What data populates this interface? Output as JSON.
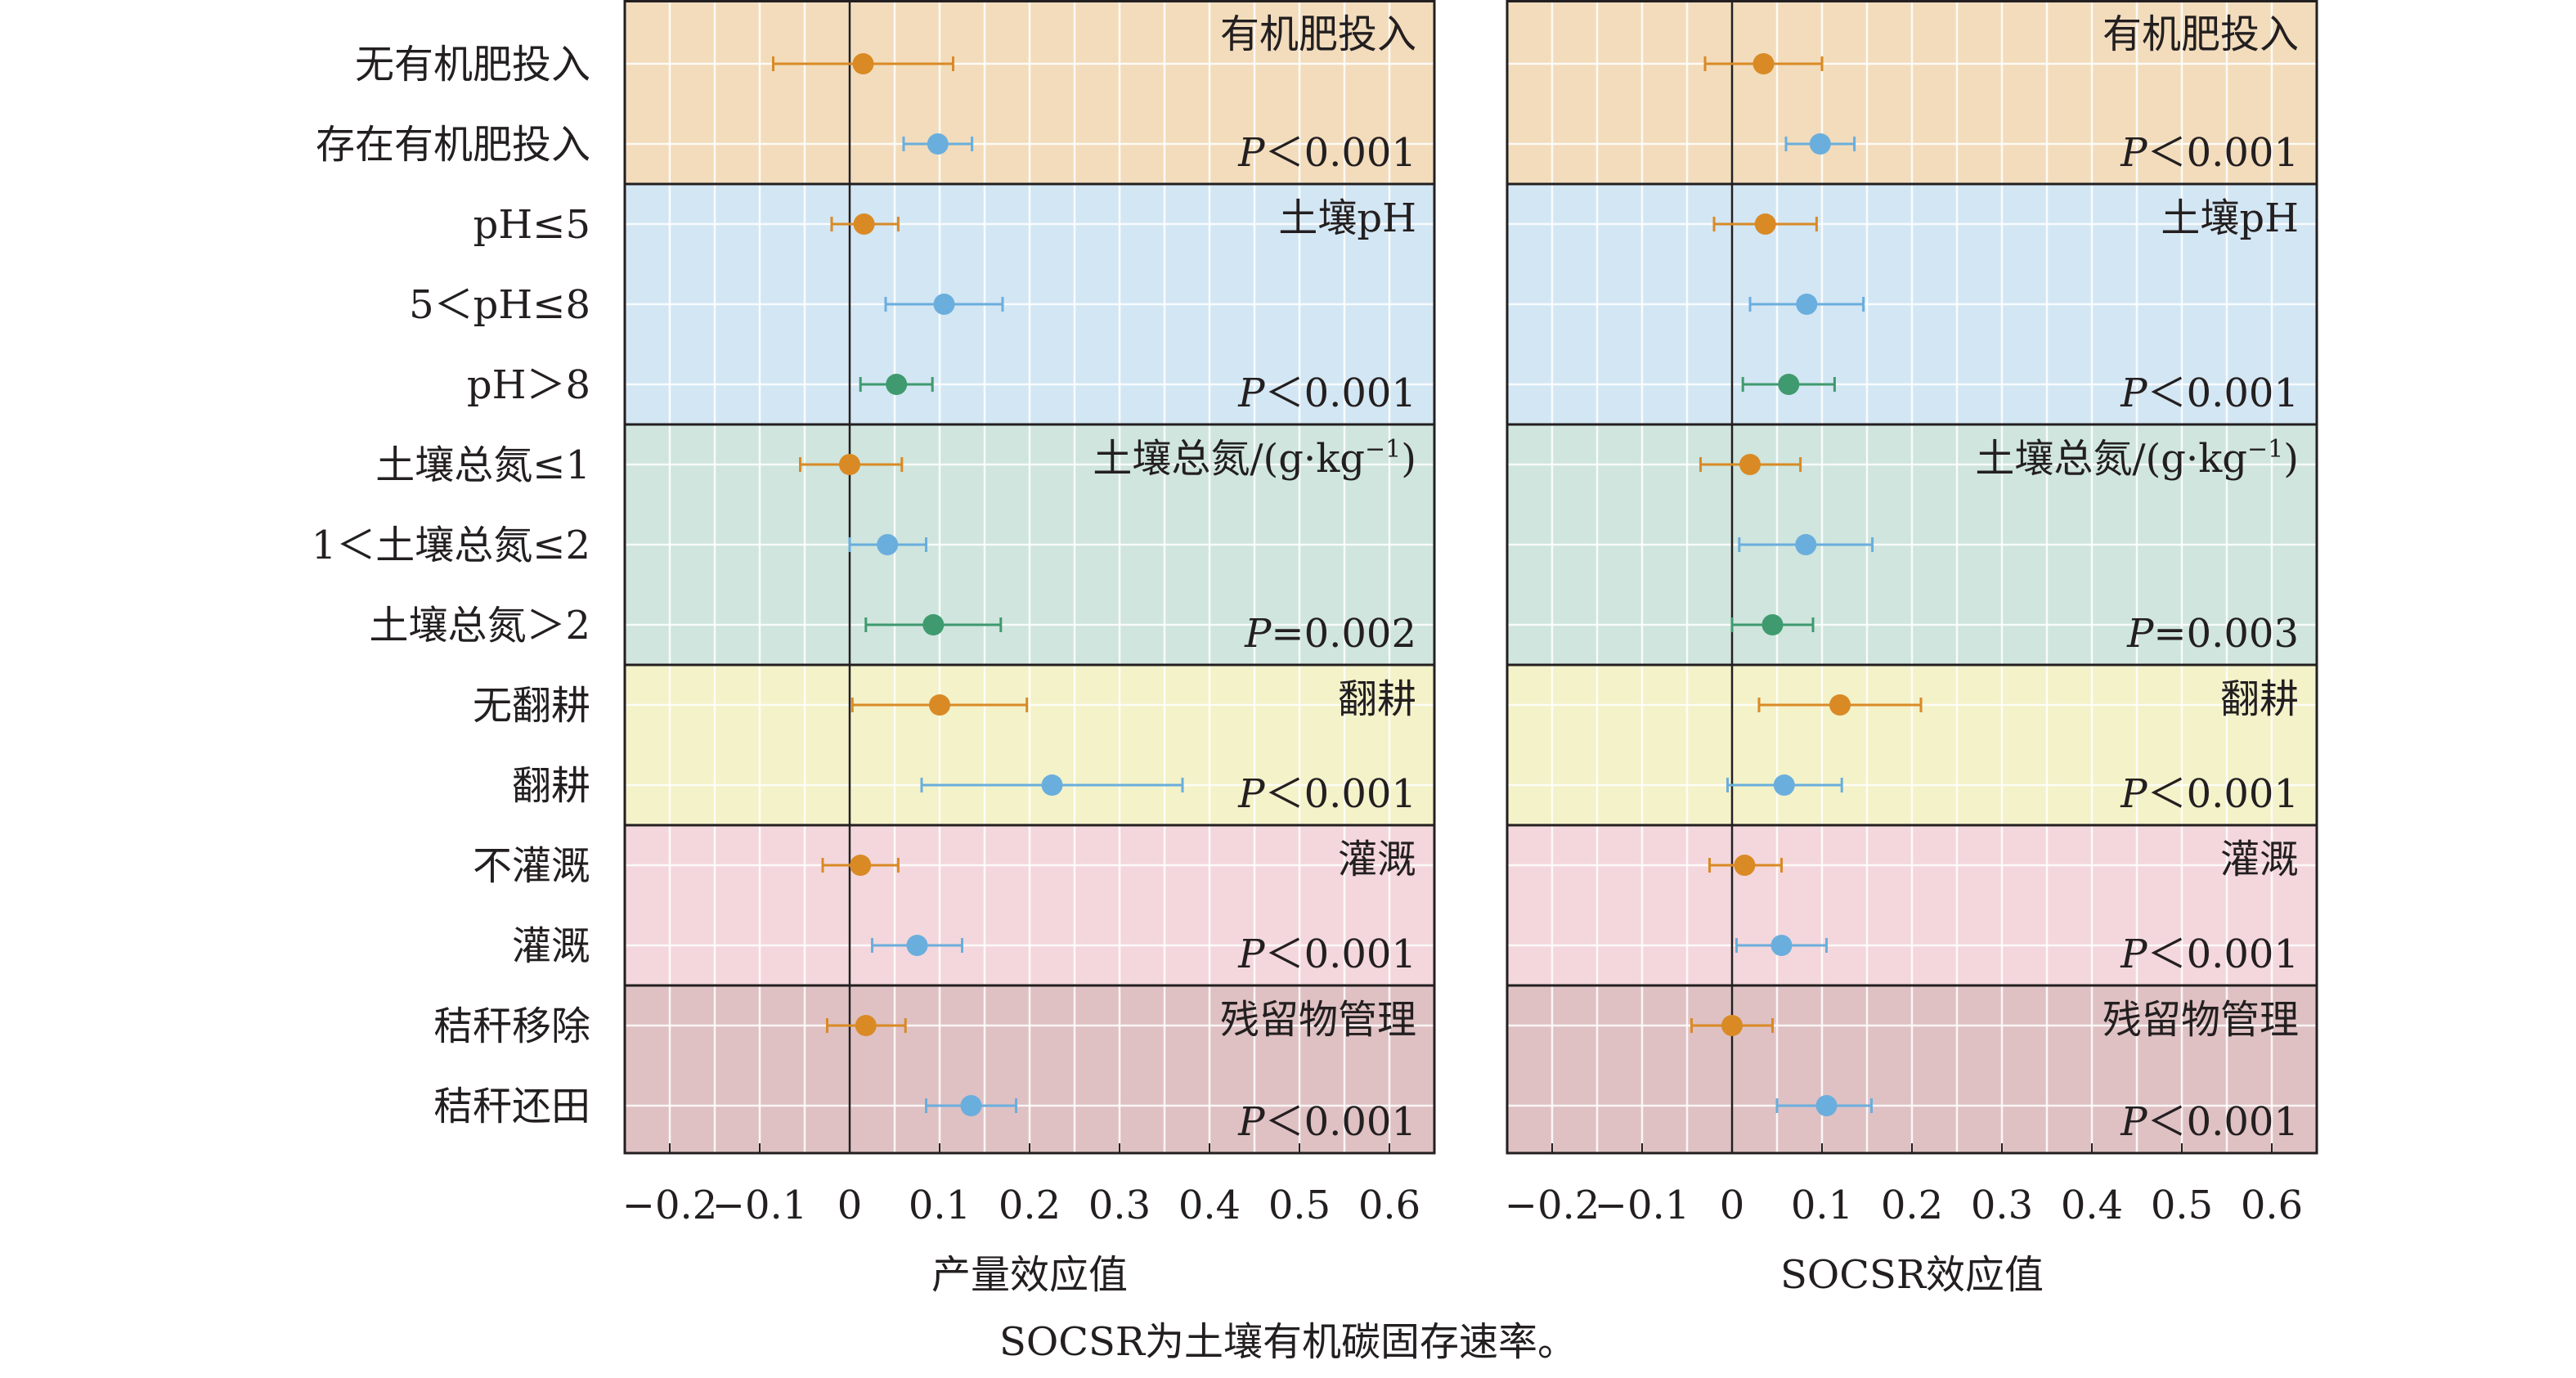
{
  "chart_data": [
    {
      "type": "forest",
      "xlabel": "产量效应值",
      "xlim": [
        -0.25,
        0.65
      ],
      "xticks": [
        -0.2,
        -0.1,
        0,
        0.1,
        0.2,
        0.3,
        0.4,
        0.5,
        0.6
      ],
      "xtick_labels": [
        "−0.2",
        "−0.1",
        "0",
        "0.1",
        "0.2",
        "0.3",
        "0.4",
        "0.5",
        "0.6"
      ],
      "groups": [
        {
          "title": "有机肥投入",
          "p_prefix": "P",
          "p_text": "＜0.001",
          "color": "#f2dcbc",
          "rows": [
            {
              "est": 0.015,
              "lo": -0.085,
              "hi": 0.115,
              "color": "#d98a25"
            },
            {
              "est": 0.098,
              "lo": 0.06,
              "hi": 0.136,
              "color": "#6aaedd"
            }
          ]
        },
        {
          "title": "土壤pH",
          "p_prefix": "P",
          "p_text": "＜0.001",
          "color": "#d3e6f3",
          "rows": [
            {
              "est": 0.016,
              "lo": -0.02,
              "hi": 0.054,
              "color": "#d98a25"
            },
            {
              "est": 0.105,
              "lo": 0.04,
              "hi": 0.17,
              "color": "#6aaedd"
            },
            {
              "est": 0.052,
              "lo": 0.012,
              "hi": 0.092,
              "color": "#3f9a6f"
            }
          ]
        },
        {
          "title": "土壤总氮/(g·kg",
          "title_sup": "−1",
          "title_tail": ")",
          "p_prefix": "P",
          "p_text": "=0.002",
          "color": "#cfe5dd",
          "rows": [
            {
              "est": 0.0,
              "lo": -0.055,
              "hi": 0.058,
              "color": "#d98a25"
            },
            {
              "est": 0.042,
              "lo": 0.0,
              "hi": 0.085,
              "color": "#6aaedd"
            },
            {
              "est": 0.093,
              "lo": 0.018,
              "hi": 0.168,
              "color": "#3f9a6f"
            }
          ]
        },
        {
          "title": "翻耕",
          "p_prefix": "P",
          "p_text": "＜0.001",
          "color": "#f3f2c9",
          "rows": [
            {
              "est": 0.1,
              "lo": 0.003,
              "hi": 0.197,
              "color": "#d98a25"
            },
            {
              "est": 0.225,
              "lo": 0.08,
              "hi": 0.37,
              "color": "#6aaedd"
            }
          ]
        },
        {
          "title": "灌溉",
          "p_prefix": "P",
          "p_text": "＜0.001",
          "color": "#f3d7dc",
          "rows": [
            {
              "est": 0.012,
              "lo": -0.03,
              "hi": 0.054,
              "color": "#d98a25"
            },
            {
              "est": 0.075,
              "lo": 0.025,
              "hi": 0.125,
              "color": "#6aaedd"
            }
          ]
        },
        {
          "title": "残留物管理",
          "p_prefix": "P",
          "p_text": "＜0.001",
          "color": "#dfc1c3",
          "rows": [
            {
              "est": 0.018,
              "lo": -0.025,
              "hi": 0.062,
              "color": "#d98a25"
            },
            {
              "est": 0.135,
              "lo": 0.085,
              "hi": 0.185,
              "color": "#6aaedd"
            }
          ]
        }
      ]
    },
    {
      "type": "forest",
      "xlabel": "SOCSR效应值",
      "xlim": [
        -0.25,
        0.65
      ],
      "xticks": [
        -0.2,
        -0.1,
        0,
        0.1,
        0.2,
        0.3,
        0.4,
        0.5,
        0.6
      ],
      "xtick_labels": [
        "−0.2",
        "−0.1",
        "0",
        "0.1",
        "0.2",
        "0.3",
        "0.4",
        "0.5",
        "0.6"
      ],
      "groups": [
        {
          "title": "有机肥投入",
          "p_prefix": "P",
          "p_text": "＜0.001",
          "color": "#f2dcbc",
          "rows": [
            {
              "est": 0.035,
              "lo": -0.03,
              "hi": 0.1,
              "color": "#d98a25"
            },
            {
              "est": 0.098,
              "lo": 0.06,
              "hi": 0.136,
              "color": "#6aaedd"
            }
          ]
        },
        {
          "title": "土壤pH",
          "p_prefix": "P",
          "p_text": "＜0.001",
          "color": "#d3e6f3",
          "rows": [
            {
              "est": 0.037,
              "lo": -0.02,
              "hi": 0.094,
              "color": "#d98a25"
            },
            {
              "est": 0.083,
              "lo": 0.02,
              "hi": 0.146,
              "color": "#6aaedd"
            },
            {
              "est": 0.063,
              "lo": 0.012,
              "hi": 0.114,
              "color": "#3f9a6f"
            }
          ]
        },
        {
          "title": "土壤总氮/(g·kg",
          "title_sup": "−1",
          "title_tail": ")",
          "p_prefix": "P",
          "p_text": "=0.003",
          "color": "#cfe5dd",
          "rows": [
            {
              "est": 0.02,
              "lo": -0.035,
              "hi": 0.076,
              "color": "#d98a25"
            },
            {
              "est": 0.082,
              "lo": 0.008,
              "hi": 0.156,
              "color": "#6aaedd"
            },
            {
              "est": 0.045,
              "lo": 0.0,
              "hi": 0.09,
              "color": "#3f9a6f"
            }
          ]
        },
        {
          "title": "翻耕",
          "p_prefix": "P",
          "p_text": "＜0.001",
          "color": "#f3f2c9",
          "rows": [
            {
              "est": 0.12,
              "lo": 0.03,
              "hi": 0.21,
              "color": "#d98a25"
            },
            {
              "est": 0.058,
              "lo": -0.005,
              "hi": 0.122,
              "color": "#6aaedd"
            }
          ]
        },
        {
          "title": "灌溉",
          "p_prefix": "P",
          "p_text": "＜0.001",
          "color": "#f3d7dc",
          "rows": [
            {
              "est": 0.014,
              "lo": -0.025,
              "hi": 0.055,
              "color": "#d98a25"
            },
            {
              "est": 0.055,
              "lo": 0.005,
              "hi": 0.105,
              "color": "#6aaedd"
            }
          ]
        },
        {
          "title": "残留物管理",
          "p_prefix": "P",
          "p_text": "＜0.001",
          "color": "#dfc1c3",
          "rows": [
            {
              "est": 0.0,
              "lo": -0.045,
              "hi": 0.045,
              "color": "#d98a25"
            },
            {
              "est": 0.105,
              "lo": 0.05,
              "hi": 0.155,
              "color": "#6aaedd"
            }
          ]
        }
      ]
    }
  ],
  "row_labels": [
    "无有机肥投入",
    "存在有机肥投入",
    "pH≤5",
    "5＜pH≤8",
    "pH＞8",
    "土壤总氮≤1",
    "1＜土壤总氮≤2",
    "土壤总氮＞2",
    "无翻耕",
    "翻耕",
    "不灌溉",
    "灌溉",
    "秸秆移除",
    "秸秆还田"
  ],
  "footnote": "SOCSR为土壤有机碳固存速率。"
}
